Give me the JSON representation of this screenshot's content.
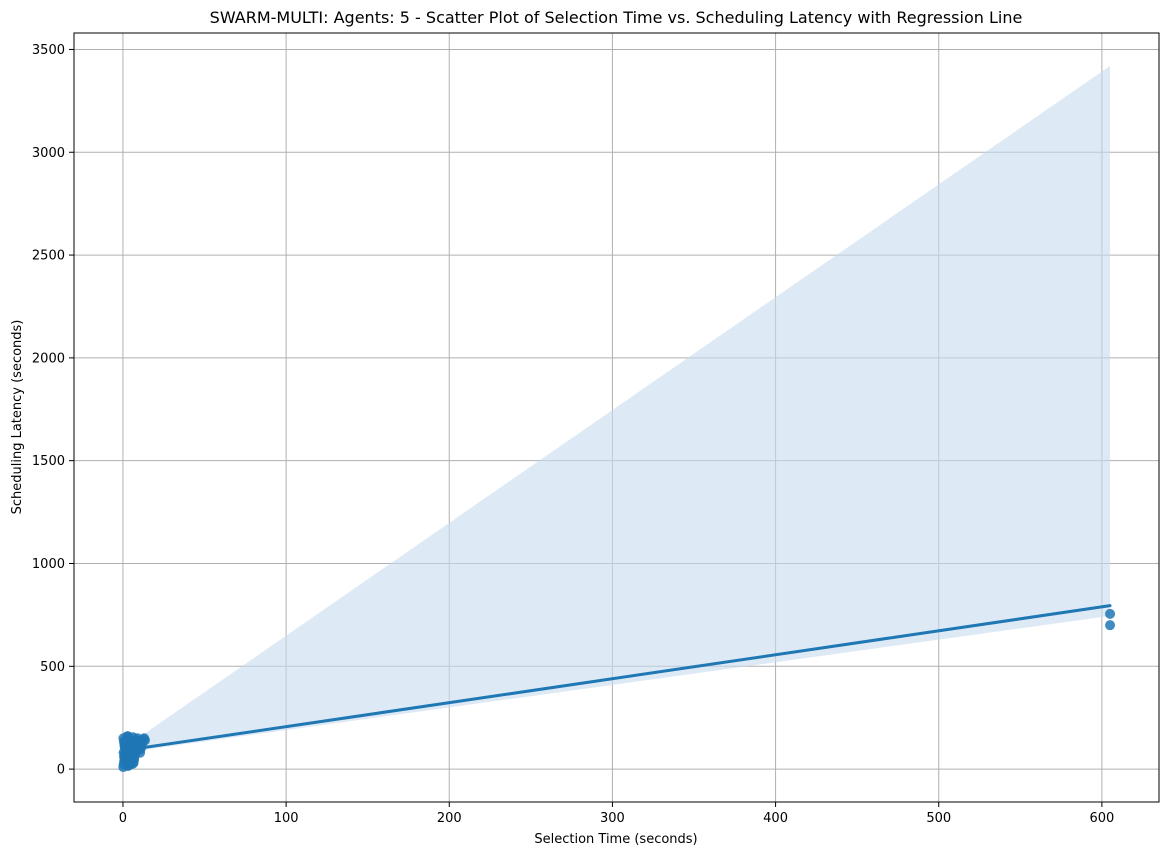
{
  "chart_data": {
    "type": "scatter",
    "title": "SWARM-MULTI: Agents: 5 - Scatter Plot of Selection Time vs. Scheduling Latency with Regression Line",
    "xlabel": "Selection Time (seconds)",
    "ylabel": "Scheduling Latency (seconds)",
    "xlim": [
      -30,
      635
    ],
    "ylim": [
      -160,
      3580
    ],
    "xticks": [
      0,
      100,
      200,
      300,
      400,
      500,
      600
    ],
    "yticks": [
      0,
      500,
      1000,
      1500,
      2000,
      2500,
      3000,
      3500
    ],
    "grid": true,
    "colors": {
      "points": "#1f77b4",
      "line": "#1f77b4",
      "band": "#c6dbef"
    },
    "points": [
      [
        0.2,
        10
      ],
      [
        0.5,
        25
      ],
      [
        0.8,
        40
      ],
      [
        1.0,
        55
      ],
      [
        1.2,
        70
      ],
      [
        1.5,
        85
      ],
      [
        1.8,
        100
      ],
      [
        2.0,
        115
      ],
      [
        2.2,
        130
      ],
      [
        2.5,
        145
      ],
      [
        2.8,
        160
      ],
      [
        0.3,
        150
      ],
      [
        0.6,
        135
      ],
      [
        0.9,
        120
      ],
      [
        1.3,
        105
      ],
      [
        1.6,
        90
      ],
      [
        1.9,
        75
      ],
      [
        2.3,
        60
      ],
      [
        2.6,
        45
      ],
      [
        2.9,
        30
      ],
      [
        3.2,
        15
      ],
      [
        3.5,
        20
      ],
      [
        3.8,
        35
      ],
      [
        4.1,
        50
      ],
      [
        4.4,
        65
      ],
      [
        4.7,
        80
      ],
      [
        5.0,
        95
      ],
      [
        5.3,
        110
      ],
      [
        5.6,
        125
      ],
      [
        5.9,
        140
      ],
      [
        6.2,
        155
      ],
      [
        3.0,
        160
      ],
      [
        3.4,
        145
      ],
      [
        3.7,
        130
      ],
      [
        4.0,
        115
      ],
      [
        4.3,
        100
      ],
      [
        4.6,
        85
      ],
      [
        4.9,
        70
      ],
      [
        5.2,
        55
      ],
      [
        5.5,
        40
      ],
      [
        5.8,
        25
      ],
      [
        6.5,
        30
      ],
      [
        6.8,
        45
      ],
      [
        7.1,
        60
      ],
      [
        7.4,
        75
      ],
      [
        7.7,
        90
      ],
      [
        8.0,
        105
      ],
      [
        8.3,
        120
      ],
      [
        8.6,
        135
      ],
      [
        8.9,
        150
      ],
      [
        9.2,
        140
      ],
      [
        9.5,
        125
      ],
      [
        9.8,
        110
      ],
      [
        10.1,
        95
      ],
      [
        10.5,
        80
      ],
      [
        11.0,
        100
      ],
      [
        11.5,
        115
      ],
      [
        12.0,
        130
      ],
      [
        12.5,
        145
      ],
      [
        13.0,
        150
      ],
      [
        13.5,
        140
      ],
      [
        7.0,
        120
      ],
      [
        6.0,
        70
      ],
      [
        2.0,
        90
      ],
      [
        1.0,
        110
      ],
      [
        0.4,
        80
      ],
      [
        0.7,
        60
      ],
      [
        1.4,
        130
      ],
      [
        2.7,
        110
      ],
      [
        3.3,
        70
      ],
      [
        605,
        755
      ],
      [
        605,
        700
      ]
    ],
    "regression": {
      "x": [
        0,
        605
      ],
      "y": [
        90,
        795
      ]
    },
    "ci_band": {
      "x": [
        0,
        605
      ],
      "upper": [
        100,
        3420
      ],
      "lower": [
        80,
        745
      ]
    }
  }
}
